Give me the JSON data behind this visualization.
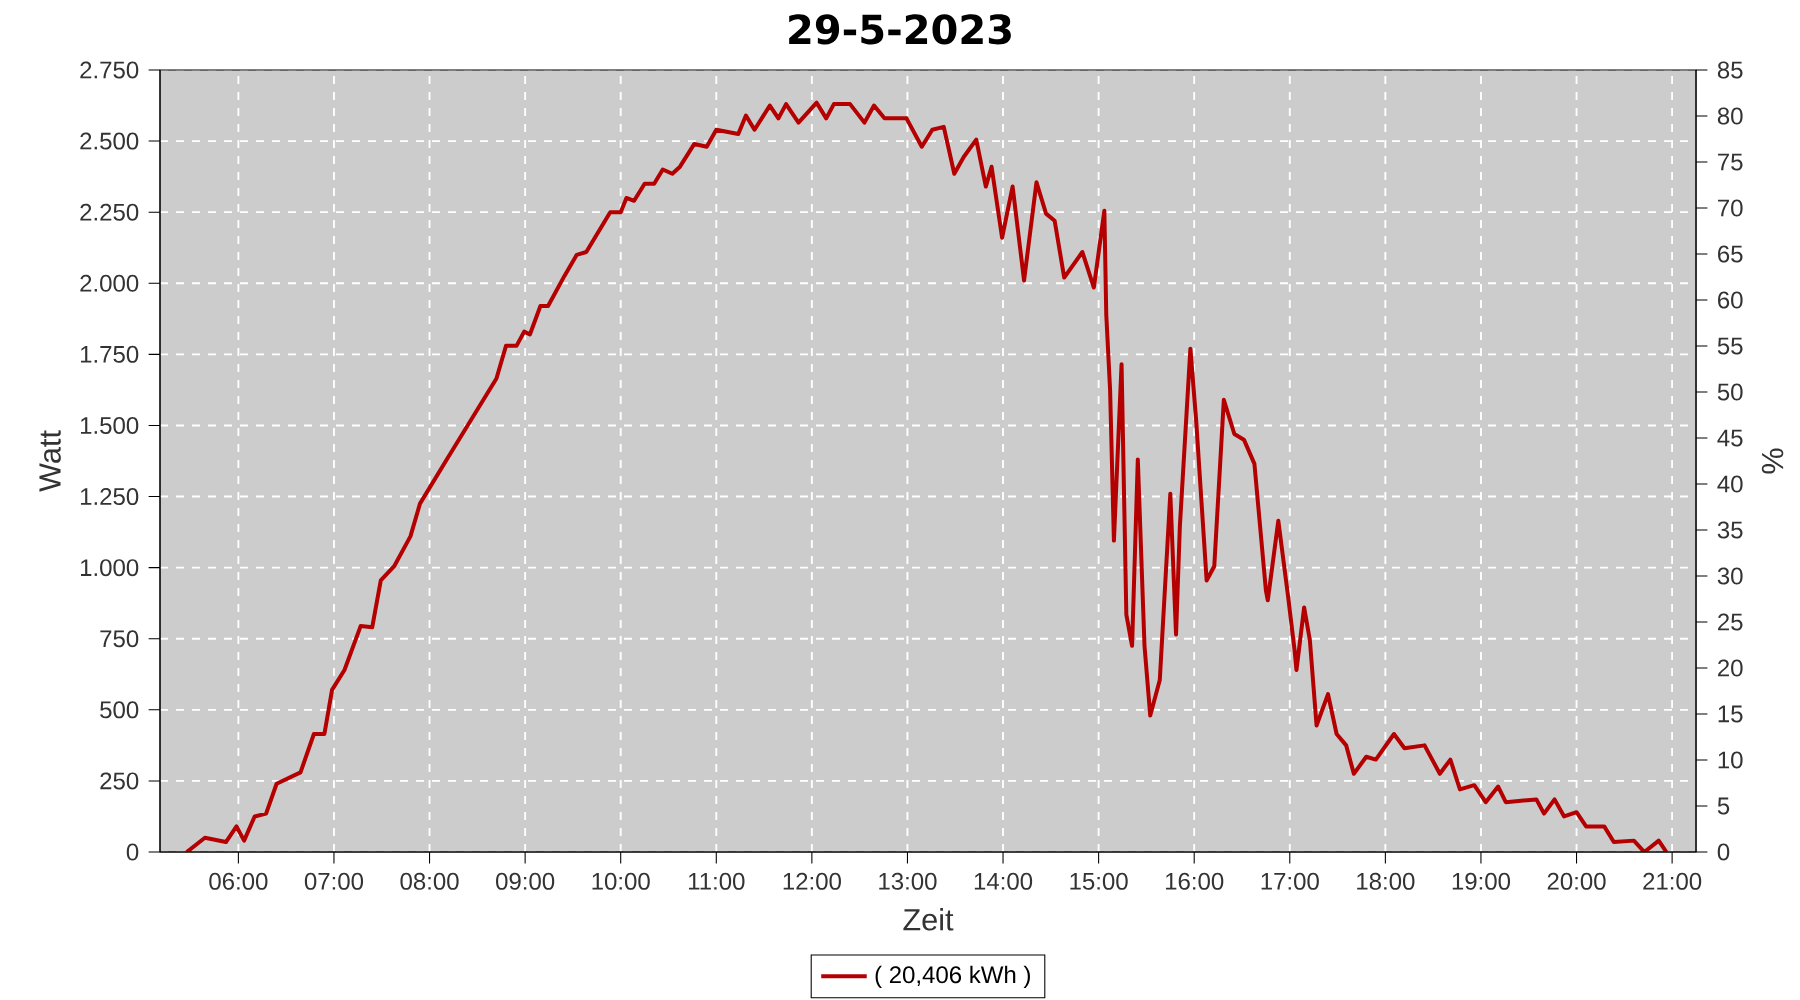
{
  "chart_data": {
    "type": "line",
    "title": "29-5-2023",
    "xlabel": "Zeit",
    "ylabel": "Watt",
    "y2label": "%",
    "x": [
      5.46,
      5.65,
      5.87,
      5.98,
      6.06,
      6.17,
      6.29,
      6.4,
      6.65,
      6.79,
      6.9,
      6.98,
      7.11,
      7.28,
      7.4,
      7.49,
      7.63,
      7.8,
      7.9,
      8.18,
      8.7,
      8.8,
      8.91,
      8.99,
      9.05,
      9.16,
      9.24,
      9.41,
      9.54,
      9.64,
      9.89,
      10.0,
      10.06,
      10.14,
      10.25,
      10.35,
      10.44,
      10.54,
      10.62,
      10.77,
      10.9,
      11.0,
      11.23,
      11.31,
      11.4,
      11.56,
      11.65,
      11.73,
      11.86,
      12.05,
      12.15,
      12.23,
      12.4,
      12.55,
      12.65,
      12.76,
      12.99,
      13.15,
      13.26,
      13.38,
      13.49,
      13.59,
      13.72,
      13.82,
      13.88,
      13.99,
      14.1,
      14.22,
      14.35,
      14.45,
      14.54,
      14.64,
      14.83,
      14.95,
      15.06,
      15.08,
      15.12,
      15.16,
      15.24,
      15.29,
      15.35,
      15.41,
      15.48,
      15.54,
      15.64,
      15.75,
      15.81,
      15.85,
      15.96,
      16.02,
      16.13,
      16.21,
      16.31,
      16.42,
      16.52,
      16.63,
      16.75,
      16.77,
      16.88,
      16.98,
      17.05,
      17.07,
      17.15,
      17.21,
      17.28,
      17.4,
      17.49,
      17.59,
      17.67,
      17.8,
      17.9,
      18.09,
      18.2,
      18.41,
      18.57,
      18.68,
      18.78,
      18.93,
      19.05,
      19.18,
      19.26,
      19.58,
      19.66,
      19.77,
      19.87,
      20.0,
      20.1,
      20.29,
      20.39,
      20.6,
      20.71,
      20.86,
      20.94
    ],
    "series": [
      {
        "name": "( 20,406 kWh )",
        "color": "#b40000",
        "values": [
          0,
          50,
          35,
          90,
          40,
          125,
          135,
          240,
          280,
          415,
          415,
          570,
          640,
          795,
          790,
          955,
          1005,
          1110,
          1225,
          1380,
          1665,
          1780,
          1780,
          1830,
          1820,
          1920,
          1920,
          2025,
          2100,
          2110,
          2250,
          2250,
          2300,
          2290,
          2350,
          2350,
          2400,
          2385,
          2410,
          2490,
          2480,
          2540,
          2525,
          2590,
          2540,
          2625,
          2580,
          2630,
          2565,
          2635,
          2580,
          2630,
          2630,
          2565,
          2625,
          2580,
          2580,
          2480,
          2540,
          2550,
          2385,
          2445,
          2505,
          2340,
          2410,
          2160,
          2340,
          2010,
          2355,
          2245,
          2220,
          2020,
          2110,
          1985,
          2255,
          1890,
          1625,
          1095,
          1715,
          835,
          725,
          1380,
          725,
          480,
          605,
          1260,
          765,
          1145,
          1770,
          1520,
          955,
          1005,
          1590,
          1470,
          1450,
          1365,
          920,
          885,
          1165,
          905,
          710,
          640,
          860,
          745,
          445,
          555,
          415,
          375,
          275,
          335,
          325,
          415,
          365,
          375,
          275,
          325,
          220,
          235,
          175,
          230,
          175,
          185,
          135,
          185,
          125,
          140,
          90,
          90,
          35,
          40,
          0,
          40,
          0
        ]
      }
    ],
    "xlim": [
      5.18,
      21.25
    ],
    "ylim": [
      0,
      2750
    ],
    "y2lim": [
      0,
      85
    ],
    "xticks": [
      {
        "value": 6,
        "label": "06:00"
      },
      {
        "value": 7,
        "label": "07:00"
      },
      {
        "value": 8,
        "label": "08:00"
      },
      {
        "value": 9,
        "label": "09:00"
      },
      {
        "value": 10,
        "label": "10:00"
      },
      {
        "value": 11,
        "label": "11:00"
      },
      {
        "value": 12,
        "label": "12:00"
      },
      {
        "value": 13,
        "label": "13:00"
      },
      {
        "value": 14,
        "label": "14:00"
      },
      {
        "value": 15,
        "label": "15:00"
      },
      {
        "value": 16,
        "label": "16:00"
      },
      {
        "value": 17,
        "label": "17:00"
      },
      {
        "value": 18,
        "label": "18:00"
      },
      {
        "value": 19,
        "label": "19:00"
      },
      {
        "value": 20,
        "label": "20:00"
      },
      {
        "value": 21,
        "label": "21:00"
      }
    ],
    "yticks": [
      0,
      250,
      500,
      750,
      {
        "value": 1000,
        "label": "1.000"
      },
      {
        "value": 1250,
        "label": "1.250"
      },
      {
        "value": 1500,
        "label": "1.500"
      },
      {
        "value": 1750,
        "label": "1.750"
      },
      {
        "value": 2000,
        "label": "2.000"
      },
      {
        "value": 2250,
        "label": "2.250"
      },
      {
        "value": 2500,
        "label": "2.500"
      },
      {
        "value": 2750,
        "label": "2.750"
      }
    ],
    "y2ticks": [
      0,
      5,
      10,
      15,
      20,
      25,
      30,
      35,
      40,
      45,
      50,
      55,
      60,
      65,
      70,
      75,
      80,
      85
    ],
    "grid": true,
    "legend": "bottom",
    "line_style": "solid"
  }
}
